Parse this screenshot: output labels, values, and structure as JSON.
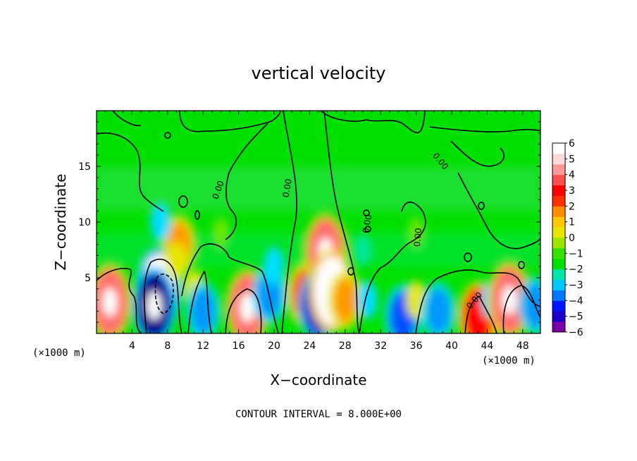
{
  "chart_data": {
    "type": "heatmap",
    "title": "vertical velocity",
    "xlabel": "X−coordinate",
    "ylabel": "Z−coordinate",
    "x_unit": "(×1000 m)",
    "y_unit": "(×1000 m)",
    "xlim": [
      0,
      50
    ],
    "ylim": [
      0,
      20
    ],
    "x_ticks": [
      4,
      8,
      12,
      16,
      20,
      24,
      28,
      32,
      36,
      40,
      44,
      48
    ],
    "y_ticks": [
      5,
      10,
      15
    ],
    "contour_interval_text": "CONTOUR INTERVAL = 8.000E+00",
    "contour_label": "0.00",
    "colorbar": {
      "min": -6,
      "max": 6,
      "tick_labels": [
        "6",
        "5",
        "4",
        "3",
        "2",
        "1",
        "0",
        "−1",
        "−2",
        "−3",
        "−4",
        "−5",
        "−6"
      ],
      "colors": [
        "#7b00a8",
        "#1a00c8",
        "#0014ff",
        "#0078ff",
        "#00c8ff",
        "#00e6a8",
        "#00e000",
        "#33e000",
        "#9be600",
        "#e6e600",
        "#ffc800",
        "#ff8c00",
        "#ff3000",
        "#ff0000",
        "#ff5050",
        "#ff9a9a",
        "#ffd8d8",
        "#ffffff"
      ]
    },
    "field_features": [
      {
        "x": 1.5,
        "z": 2.8,
        "value": 6
      },
      {
        "x": 7.0,
        "z": 4.0,
        "value": -7
      },
      {
        "x": 6.5,
        "z": 2.5,
        "value": -6
      },
      {
        "x": 9.3,
        "z": 8.0,
        "value": 3
      },
      {
        "x": 9.0,
        "z": 6.5,
        "value": 2
      },
      {
        "x": 7.2,
        "z": 10.0,
        "value": -2
      },
      {
        "x": 11.0,
        "z": 4.0,
        "value": 2
      },
      {
        "x": 12.0,
        "z": 2.0,
        "value": -3
      },
      {
        "x": 17.0,
        "z": 2.3,
        "value": 6
      },
      {
        "x": 19.5,
        "z": 3.5,
        "value": -3
      },
      {
        "x": 20.0,
        "z": 6.0,
        "value": -2
      },
      {
        "x": 23.5,
        "z": 3.5,
        "value": 4
      },
      {
        "x": 25.8,
        "z": 7.3,
        "value": 6
      },
      {
        "x": 26.0,
        "z": 4.0,
        "value": -4
      },
      {
        "x": 25.0,
        "z": 2.5,
        "value": -5
      },
      {
        "x": 26.5,
        "z": 3.8,
        "value": 7
      },
      {
        "x": 28.0,
        "z": 3.0,
        "value": 3
      },
      {
        "x": 30.5,
        "z": 3.0,
        "value": -2
      },
      {
        "x": 34.5,
        "z": 1.5,
        "value": -4
      },
      {
        "x": 36.0,
        "z": 3.0,
        "value": 2
      },
      {
        "x": 38.5,
        "z": 2.0,
        "value": -3
      },
      {
        "x": 43.0,
        "z": 1.5,
        "value": 5
      },
      {
        "x": 44.5,
        "z": 3.0,
        "value": -2
      },
      {
        "x": 46.5,
        "z": 3.0,
        "value": 6
      },
      {
        "x": 49.5,
        "z": 2.5,
        "value": -3
      },
      {
        "x": 30.0,
        "z": 7.5,
        "value": -1
      },
      {
        "x": 14.0,
        "z": 9.0,
        "value": 1
      },
      {
        "x": 36.0,
        "z": 9.0,
        "value": 1
      }
    ]
  }
}
